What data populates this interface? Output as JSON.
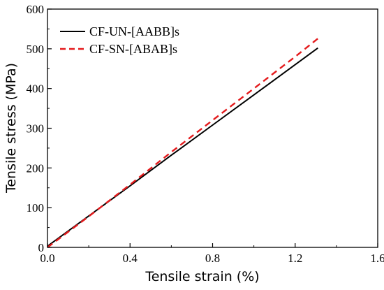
{
  "chart_data": {
    "type": "line",
    "title": "",
    "xlabel": "Tensile strain (%)",
    "ylabel": "Tensile stress (MPa)",
    "xlim": [
      0.0,
      1.6
    ],
    "ylim": [
      0,
      600
    ],
    "x_ticks": [
      0.0,
      0.4,
      0.8,
      1.2,
      1.6
    ],
    "x_tick_labels": [
      "0.0",
      "0.4",
      "0.8",
      "1.2",
      "1.6"
    ],
    "y_ticks": [
      0,
      100,
      200,
      300,
      400,
      500,
      600
    ],
    "y_tick_labels": [
      "0",
      "100",
      "200",
      "300",
      "400",
      "500",
      "600"
    ],
    "grid": false,
    "legend_position": "top-left",
    "series": [
      {
        "name": "CF-UN-[AABB]s",
        "color": "#000000",
        "style": "solid",
        "x": [
          0.0,
          0.2,
          0.4,
          0.6,
          0.8,
          1.0,
          1.2,
          1.31
        ],
        "y": [
          3,
          79,
          155,
          232,
          308,
          384,
          460,
          502
        ]
      },
      {
        "name": "CF-SN-[ABAB]s",
        "color": "#e41a1c",
        "style": "dashed",
        "x": [
          0.0,
          0.2,
          0.4,
          0.6,
          0.8,
          1.0,
          1.2,
          1.31
        ],
        "y": [
          0,
          78,
          158,
          240,
          320,
          400,
          480,
          526
        ]
      }
    ]
  }
}
